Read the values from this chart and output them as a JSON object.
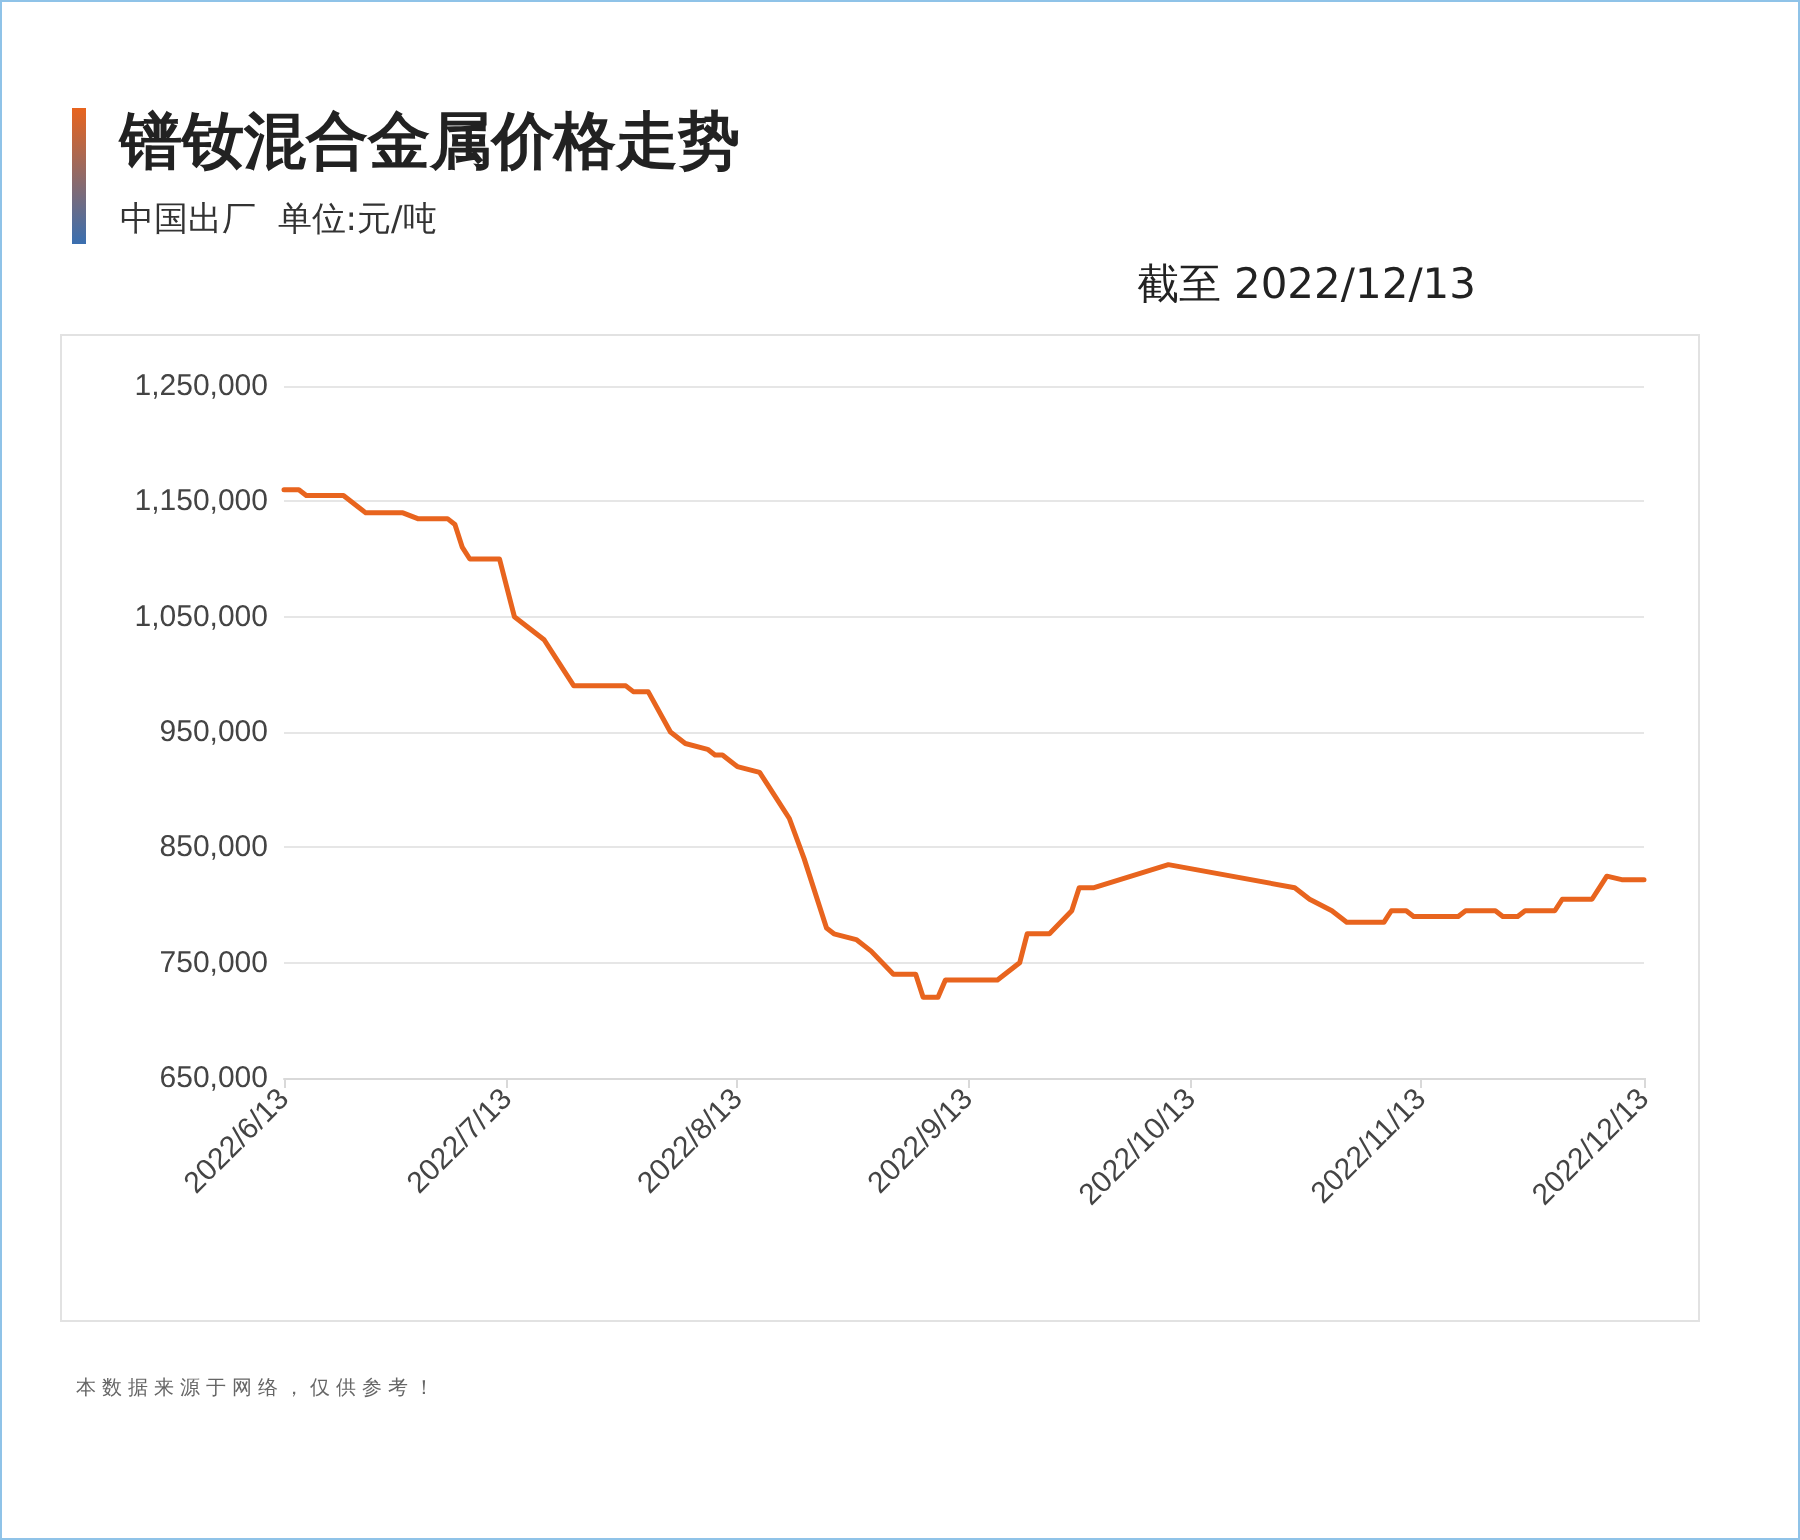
{
  "chart_data": {
    "type": "line",
    "title": "镨钕混合金属价格走势",
    "subtitle": "中国出厂  单位:元/吨",
    "annotations": [
      "截至 2022/12/13",
      "本数据来源于网络，仅供参考！"
    ],
    "x": [
      "2022-06-13",
      "2022-06-15",
      "2022-06-16",
      "2022-06-21",
      "2022-06-24",
      "2022-06-29",
      "2022-07-01",
      "2022-07-05",
      "2022-07-06",
      "2022-07-07",
      "2022-07-08",
      "2022-07-12",
      "2022-07-14",
      "2022-07-16",
      "2022-07-18",
      "2022-07-20",
      "2022-07-22",
      "2022-07-29",
      "2022-07-30",
      "2022-08-01",
      "2022-08-04",
      "2022-08-06",
      "2022-08-09",
      "2022-08-10",
      "2022-08-11",
      "2022-08-13",
      "2022-08-16",
      "2022-08-17",
      "2022-08-18",
      "2022-08-20",
      "2022-08-22",
      "2022-08-24",
      "2022-08-25",
      "2022-08-26",
      "2022-08-29",
      "2022-08-31",
      "2022-09-03",
      "2022-09-06",
      "2022-09-07",
      "2022-09-09",
      "2022-09-10",
      "2022-09-17",
      "2022-09-20",
      "2022-09-21",
      "2022-09-24",
      "2022-09-27",
      "2022-09-28",
      "2022-09-30",
      "2022-10-10",
      "2022-10-27",
      "2022-10-29",
      "2022-11-01",
      "2022-11-03",
      "2022-11-08",
      "2022-11-09",
      "2022-11-11",
      "2022-11-12",
      "2022-11-18",
      "2022-11-19",
      "2022-11-23",
      "2022-11-24",
      "2022-11-26",
      "2022-11-27",
      "2022-12-01",
      "2022-12-02",
      "2022-12-06",
      "2022-12-08",
      "2022-12-10",
      "2022-12-13"
    ],
    "series": [
      {
        "color": "#e8641e",
        "values": [
          1160000,
          1160000,
          1155000,
          1155000,
          1140000,
          1140000,
          1135000,
          1135000,
          1130000,
          1110000,
          1100000,
          1100000,
          1050000,
          1040000,
          1030000,
          1010000,
          990000,
          990000,
          985000,
          985000,
          950000,
          940000,
          935000,
          930000,
          930000,
          920000,
          915000,
          905000,
          895000,
          875000,
          840000,
          800000,
          780000,
          775000,
          770000,
          760000,
          740000,
          740000,
          720000,
          720000,
          735000,
          735000,
          750000,
          775000,
          775000,
          795000,
          815000,
          815000,
          835000,
          815000,
          805000,
          795000,
          785000,
          785000,
          795000,
          795000,
          790000,
          790000,
          795000,
          795000,
          790000,
          790000,
          795000,
          795000,
          805000,
          805000,
          825000,
          822000,
          822000
        ]
      }
    ],
    "xlim": [
      "2022-06-13",
      "2022-12-13"
    ],
    "xticks": [
      {
        "value": "2022-06-13",
        "label": "2022/6/13"
      },
      {
        "value": "2022-07-13",
        "label": "2022/7/13"
      },
      {
        "value": "2022-08-13",
        "label": "2022/8/13"
      },
      {
        "value": "2022-09-13",
        "label": "2022/9/13"
      },
      {
        "value": "2022-10-13",
        "label": "2022/10/13"
      },
      {
        "value": "2022-11-13",
        "label": "2022/11/13"
      },
      {
        "value": "2022-12-13",
        "label": "2022/12/13"
      }
    ],
    "ylim": [
      650000,
      1250000
    ],
    "yticks": [
      {
        "value": 650000,
        "label": "650,000"
      },
      {
        "value": 750000,
        "label": "750,000"
      },
      {
        "value": 850000,
        "label": "850,000"
      },
      {
        "value": 950000,
        "label": "950,000"
      },
      {
        "value": 1050000,
        "label": "1,050,000"
      },
      {
        "value": 1150000,
        "label": "1,150,000"
      },
      {
        "value": 1250000,
        "label": "1,250,000"
      }
    ],
    "grid": "y",
    "marker": "none",
    "line_style": "solid"
  }
}
